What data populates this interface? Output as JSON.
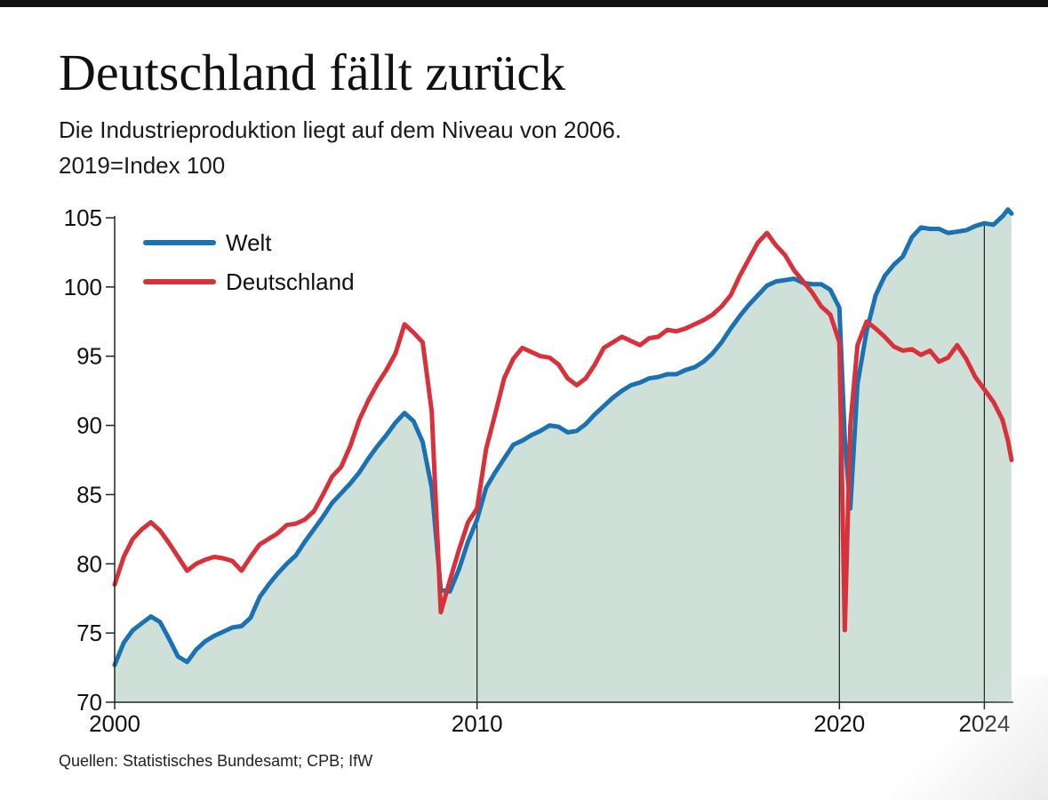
{
  "title": "Deutschland fällt zurück",
  "subtitle_line1": "Die Industrieproduktion liegt auf dem Niveau von 2006.",
  "subtitle_line2": "2019=Index 100",
  "source": "Quellen: Statistisches Bundesamt; CPB; IfW",
  "colors": {
    "welt": "#1a72b3",
    "deutschland": "#d8313a",
    "area": "#cfe0d9",
    "axis": "#222222"
  },
  "chart_data": {
    "type": "line",
    "ylim": [
      70,
      105
    ],
    "xlim": [
      2000,
      2024.8
    ],
    "y_ticks": [
      105,
      100,
      95,
      90,
      85,
      80,
      75,
      70
    ],
    "x_ticks": [
      {
        "label": "2000",
        "value": 2000
      },
      {
        "label": "2010",
        "value": 2010
      },
      {
        "label": "2020",
        "value": 2020
      },
      {
        "label": "2024",
        "value": 2024
      }
    ],
    "reference_lines": [
      2010,
      2020,
      2024
    ],
    "legend_position": "top-left",
    "area_fill_series": "Welt",
    "series": [
      {
        "name": "Welt",
        "x": [
          2000,
          2000.25,
          2000.5,
          2000.75,
          2001,
          2001.25,
          2001.5,
          2001.75,
          2002,
          2002.25,
          2002.5,
          2002.75,
          2003,
          2003.25,
          2003.5,
          2003.75,
          2004,
          2004.25,
          2004.5,
          2004.75,
          2005,
          2005.25,
          2005.5,
          2005.75,
          2006,
          2006.25,
          2006.5,
          2006.75,
          2007,
          2007.25,
          2007.5,
          2007.75,
          2008,
          2008.25,
          2008.5,
          2008.75,
          2009,
          2009.25,
          2009.5,
          2009.75,
          2010,
          2010.25,
          2010.5,
          2010.75,
          2011,
          2011.25,
          2011.5,
          2011.75,
          2012,
          2012.25,
          2012.5,
          2012.75,
          2013,
          2013.25,
          2013.5,
          2013.75,
          2014,
          2014.25,
          2014.5,
          2014.75,
          2015,
          2015.25,
          2015.5,
          2015.75,
          2016,
          2016.25,
          2016.5,
          2016.75,
          2017,
          2017.25,
          2017.5,
          2017.75,
          2018,
          2018.25,
          2018.5,
          2018.75,
          2019,
          2019.25,
          2019.5,
          2019.75,
          2020,
          2020.15,
          2020.3,
          2020.5,
          2020.75,
          2021,
          2021.25,
          2021.5,
          2021.75,
          2022,
          2022.25,
          2022.5,
          2022.75,
          2023,
          2023.25,
          2023.5,
          2023.75,
          2024,
          2024.25,
          2024.5,
          2024.65,
          2024.75
        ],
        "values": [
          72.7,
          74.3,
          75.2,
          75.7,
          76.2,
          75.8,
          74.6,
          73.3,
          72.9,
          73.8,
          74.4,
          74.8,
          75.1,
          75.4,
          75.5,
          76.1,
          77.6,
          78.5,
          79.3,
          80.0,
          80.6,
          81.6,
          82.5,
          83.4,
          84.4,
          85.1,
          85.8,
          86.6,
          87.6,
          88.5,
          89.3,
          90.2,
          90.9,
          90.3,
          88.8,
          85.5,
          78.1,
          78.0,
          79.6,
          81.6,
          83.2,
          85.5,
          86.6,
          87.6,
          88.6,
          88.9,
          89.3,
          89.6,
          90.0,
          89.9,
          89.5,
          89.6,
          90.1,
          90.8,
          91.4,
          92.0,
          92.5,
          92.9,
          93.1,
          93.4,
          93.5,
          93.7,
          93.7,
          94.0,
          94.2,
          94.6,
          95.2,
          96.0,
          97.0,
          97.9,
          98.7,
          99.4,
          100.1,
          100.4,
          100.5,
          100.6,
          100.3,
          100.2,
          100.2,
          99.8,
          98.5,
          89.0,
          84.0,
          93.0,
          96.8,
          99.4,
          100.8,
          101.6,
          102.2,
          103.6,
          104.3,
          104.2,
          104.2,
          103.9,
          104.0,
          104.1,
          104.4,
          104.6,
          104.5,
          105.1,
          105.6,
          105.3
        ]
      },
      {
        "name": "Deutschland",
        "x": [
          2000,
          2000.25,
          2000.5,
          2000.75,
          2001,
          2001.25,
          2001.5,
          2001.75,
          2002,
          2002.25,
          2002.5,
          2002.75,
          2003,
          2003.25,
          2003.5,
          2003.75,
          2004,
          2004.25,
          2004.5,
          2004.75,
          2005,
          2005.25,
          2005.5,
          2005.75,
          2006,
          2006.25,
          2006.5,
          2006.75,
          2007,
          2007.25,
          2007.5,
          2007.75,
          2008,
          2008.25,
          2008.5,
          2008.75,
          2009,
          2009.25,
          2009.5,
          2009.75,
          2010,
          2010.25,
          2010.5,
          2010.75,
          2011,
          2011.25,
          2011.5,
          2011.75,
          2012,
          2012.25,
          2012.5,
          2012.75,
          2013,
          2013.25,
          2013.5,
          2013.75,
          2014,
          2014.25,
          2014.5,
          2014.75,
          2015,
          2015.25,
          2015.5,
          2015.75,
          2016,
          2016.25,
          2016.5,
          2016.75,
          2017,
          2017.25,
          2017.5,
          2017.75,
          2018,
          2018.25,
          2018.5,
          2018.75,
          2019,
          2019.25,
          2019.5,
          2019.75,
          2020,
          2020.15,
          2020.3,
          2020.5,
          2020.75,
          2021,
          2021.25,
          2021.5,
          2021.75,
          2022,
          2022.25,
          2022.5,
          2022.75,
          2023,
          2023.25,
          2023.5,
          2023.75,
          2024,
          2024.25,
          2024.5,
          2024.65,
          2024.75
        ],
        "values": [
          78.5,
          80.5,
          81.8,
          82.5,
          83.0,
          82.4,
          81.5,
          80.5,
          79.5,
          80.0,
          80.3,
          80.5,
          80.4,
          80.2,
          79.5,
          80.5,
          81.4,
          81.8,
          82.2,
          82.8,
          82.9,
          83.2,
          83.8,
          85.0,
          86.3,
          87.0,
          88.5,
          90.4,
          91.8,
          93.0,
          94.0,
          95.2,
          97.3,
          96.7,
          96.0,
          91.0,
          76.5,
          78.8,
          81.0,
          83.0,
          84.0,
          88.3,
          90.8,
          93.4,
          94.8,
          95.6,
          95.3,
          95.0,
          94.9,
          94.4,
          93.4,
          92.9,
          93.4,
          94.4,
          95.6,
          96.0,
          96.4,
          96.1,
          95.8,
          96.3,
          96.4,
          96.9,
          96.8,
          97.0,
          97.3,
          97.6,
          98.0,
          98.6,
          99.4,
          100.8,
          102.0,
          103.2,
          103.9,
          103.0,
          102.3,
          101.2,
          100.4,
          99.6,
          98.6,
          98.0,
          96.0,
          75.2,
          90.0,
          95.8,
          97.5,
          97.0,
          96.4,
          95.7,
          95.4,
          95.5,
          95.1,
          95.4,
          94.6,
          94.9,
          95.8,
          94.8,
          93.5,
          92.6,
          91.7,
          90.4,
          88.9,
          87.5
        ]
      }
    ]
  }
}
